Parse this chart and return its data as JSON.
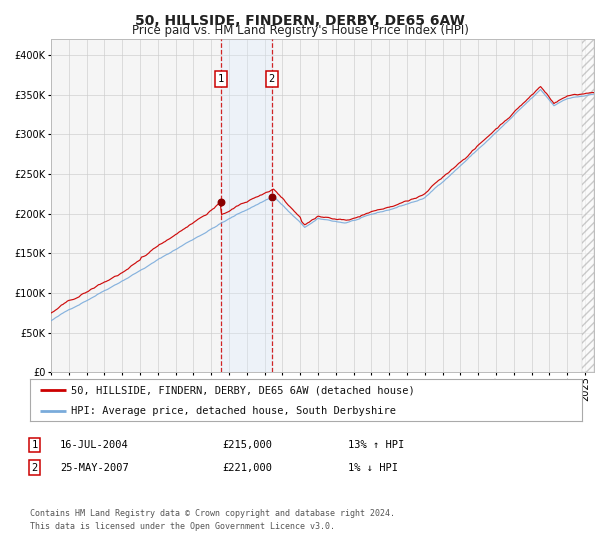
{
  "title": "50, HILLSIDE, FINDERN, DERBY, DE65 6AW",
  "subtitle": "Price paid vs. HM Land Registry's House Price Index (HPI)",
  "ylim": [
    0,
    420000
  ],
  "yticks": [
    0,
    50000,
    100000,
    150000,
    200000,
    250000,
    300000,
    350000,
    400000
  ],
  "xlim_start": 1995.0,
  "xlim_end": 2025.5,
  "sale1_date": 2004.54,
  "sale1_price": 215000,
  "sale2_date": 2007.39,
  "sale2_price": 221000,
  "hpi_line_color": "#7aabdb",
  "price_line_color": "#cc0000",
  "sale_dot_color": "#880000",
  "shade_color": "#ddeeff",
  "vline_color": "#cc0000",
  "grid_color": "#cccccc",
  "bg_color": "#ffffff",
  "plot_bg_color": "#f5f5f5",
  "legend1_label": "50, HILLSIDE, FINDERN, DERBY, DE65 6AW (detached house)",
  "legend2_label": "HPI: Average price, detached house, South Derbyshire",
  "table_row1_num": "1",
  "table_row1_date": "16-JUL-2004",
  "table_row1_price": "£215,000",
  "table_row1_hpi": "13% ↑ HPI",
  "table_row2_num": "2",
  "table_row2_date": "25-MAY-2007",
  "table_row2_price": "£221,000",
  "table_row2_hpi": "1% ↓ HPI",
  "footnote1": "Contains HM Land Registry data © Crown copyright and database right 2024.",
  "footnote2": "This data is licensed under the Open Government Licence v3.0.",
  "hatched_right_start": 2024.83,
  "title_fontsize": 10,
  "subtitle_fontsize": 8.5,
  "tick_fontsize": 7,
  "legend_fontsize": 7.5,
  "table_fontsize": 7.5,
  "footnote_fontsize": 6
}
